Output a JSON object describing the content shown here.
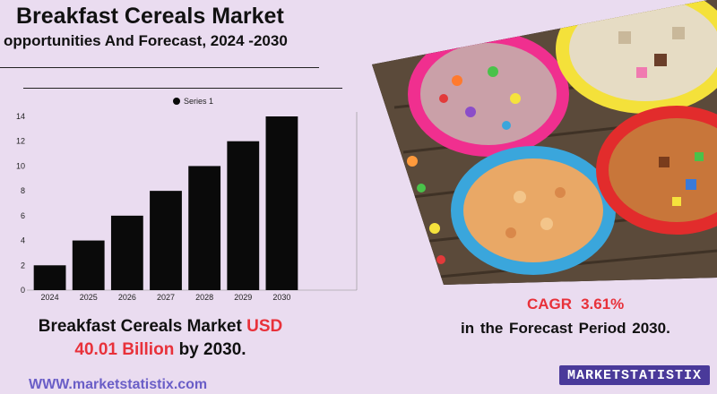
{
  "title": "Breakfast Cereals Market",
  "subtitle": "opportunities And Forecast, 2024 -2030",
  "headline": {
    "prefix": "Breakfast Cereals Market ",
    "currency": "USD",
    "value": "40.01 Billion",
    "suffix": " by 2030."
  },
  "cagr": {
    "label": "CAGR",
    "value": "3.61%"
  },
  "forecast_text": "in the  Forecast Period  2030.",
  "website": "WWW.marketstatistix.com",
  "logo_text": "MARKETSTATISTIX",
  "photo_icon": "cereal-bowls-photo",
  "colors": {
    "background": "#eadcf0",
    "bar": "#0a0a0a",
    "accent_red": "#e8313a",
    "logo_bg": "#4a3a9a",
    "website": "#6a5ec7"
  },
  "chart_data": {
    "type": "bar",
    "categories": [
      "2024",
      "2025",
      "2026",
      "2027",
      "2028",
      "2029",
      "2030"
    ],
    "series": [
      {
        "name": "Series 1",
        "values": [
          2,
          4,
          6,
          8,
          10,
          12,
          14
        ]
      }
    ],
    "ylim": [
      0,
      14
    ],
    "yticks": [
      0,
      2,
      4,
      6,
      8,
      10,
      12,
      14
    ],
    "grid": false,
    "legend": "top-center"
  }
}
